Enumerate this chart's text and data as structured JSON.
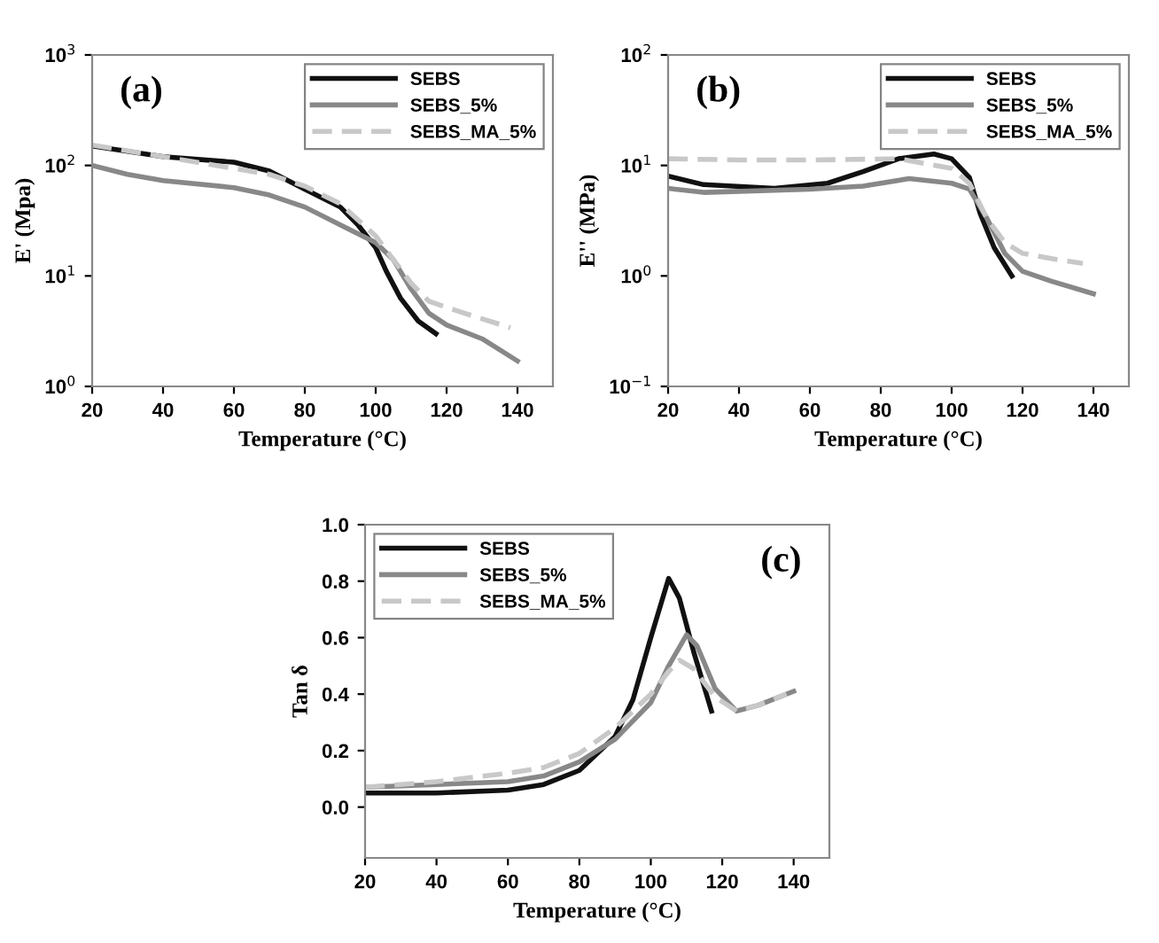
{
  "chart_data": [
    {
      "type": "line",
      "xlabel": "Temperature (°C)",
      "ylabel": "E' (Mpa)",
      "annotations": [
        "(a)"
      ],
      "log": "y",
      "legend": "top right",
      "grid": false,
      "marker": "none",
      "xlim": [
        20,
        150
      ],
      "xticks": [
        20,
        40,
        60,
        80,
        100,
        120,
        140
      ],
      "ylim": [
        1,
        1000
      ],
      "yticks": [
        {
          "value": 1,
          "label": "10$^{0}$"
        },
        {
          "value": 10,
          "label": "10$^{1}$"
        },
        {
          "value": 100,
          "label": "10$^{2}$"
        },
        {
          "value": 1000,
          "label": "10$^{3}$"
        }
      ],
      "series": [
        {
          "name": "SEBS",
          "color": "#111111",
          "line_style": "solid",
          "x": [
            20,
            40,
            60,
            70,
            80,
            90,
            95,
            100,
            103,
            107,
            112,
            117
          ],
          "values": [
            150,
            120,
            107,
            89,
            61,
            42,
            29,
            18,
            11,
            6.3,
            3.9,
            3.0
          ]
        },
        {
          "name": "SEBS_5%",
          "color": "#888888",
          "line_style": "solid",
          "x": [
            20,
            30,
            40,
            60,
            70,
            80,
            90,
            100,
            105,
            110,
            115,
            120,
            130,
            140
          ],
          "values": [
            100,
            83,
            73,
            63,
            54,
            42,
            29,
            20,
            14,
            7.6,
            4.6,
            3.6,
            2.7,
            1.7
          ]
        },
        {
          "name": "SEBS_MA_5%",
          "color": "#c8c8c8",
          "line_style": "dashed",
          "x": [
            20,
            40,
            60,
            70,
            80,
            90,
            100,
            105,
            110,
            115,
            125,
            138
          ],
          "values": [
            153,
            120,
            94,
            83,
            65,
            45,
            23,
            14,
            8.6,
            5.9,
            4.6,
            3.4
          ]
        }
      ]
    },
    {
      "type": "line",
      "xlabel": "Temperature (°C)",
      "ylabel": "E'' (MPa)",
      "annotations": [
        "(b)"
      ],
      "log": "y",
      "legend": "top right",
      "grid": false,
      "marker": "none",
      "xlim": [
        20,
        150
      ],
      "xticks": [
        20,
        40,
        60,
        80,
        100,
        120,
        140
      ],
      "ylim": [
        0.1,
        100
      ],
      "yticks": [
        {
          "value": 0.1,
          "label": "10$^{−1}$"
        },
        {
          "value": 1,
          "label": "10$^{0}$"
        },
        {
          "value": 10,
          "label": "10$^{1}$"
        },
        {
          "value": 100,
          "label": "10$^{2}$"
        }
      ],
      "series": [
        {
          "name": "SEBS",
          "color": "#111111",
          "line_style": "solid",
          "x": [
            20,
            30,
            50,
            65,
            75,
            85,
            95,
            100,
            105,
            108,
            112,
            117
          ],
          "values": [
            8.0,
            6.7,
            6.2,
            6.9,
            8.8,
            11.5,
            12.7,
            11.5,
            7.8,
            3.7,
            1.8,
            1.0
          ]
        },
        {
          "name": "SEBS_5%",
          "color": "#888888",
          "line_style": "solid",
          "x": [
            20,
            30,
            60,
            75,
            88,
            100,
            105,
            110,
            115,
            120,
            128,
            140
          ],
          "values": [
            6.2,
            5.7,
            6.1,
            6.5,
            7.6,
            6.9,
            6.1,
            3.3,
            1.6,
            1.1,
            0.9,
            0.69
          ]
        },
        {
          "name": "SEBS_MA_5%",
          "color": "#c8c8c8",
          "line_style": "dashed",
          "x": [
            20,
            40,
            60,
            85,
            100,
            105,
            110,
            115,
            120,
            130,
            137
          ],
          "values": [
            11.5,
            11.2,
            11.2,
            11.5,
            9.4,
            6.9,
            3.3,
            2.0,
            1.6,
            1.4,
            1.3
          ]
        }
      ]
    },
    {
      "type": "line",
      "xlabel": "Temperature (°C)",
      "ylabel": "Tan δ",
      "annotations": [
        "(c)"
      ],
      "legend": "top left",
      "grid": false,
      "marker": "none",
      "xlim": [
        20,
        150
      ],
      "xticks": [
        20,
        40,
        60,
        80,
        100,
        120,
        140
      ],
      "ylim": [
        -0.18,
        1.0
      ],
      "yticks": [
        {
          "value": 0.0,
          "label": "0.0"
        },
        {
          "value": 0.2,
          "label": "0.2"
        },
        {
          "value": 0.4,
          "label": "0.4"
        },
        {
          "value": 0.6,
          "label": "0.6"
        },
        {
          "value": 0.8,
          "label": "0.8"
        },
        {
          "value": 1.0,
          "label": "1.0"
        }
      ],
      "series": [
        {
          "name": "SEBS",
          "color": "#111111",
          "line_style": "solid",
          "x": [
            20,
            40,
            60,
            70,
            80,
            90,
            95,
            100,
            105,
            108,
            112,
            117
          ],
          "values": [
            0.05,
            0.05,
            0.06,
            0.08,
            0.13,
            0.25,
            0.38,
            0.6,
            0.81,
            0.74,
            0.55,
            0.34
          ]
        },
        {
          "name": "SEBS_5%",
          "color": "#888888",
          "line_style": "solid",
          "x": [
            20,
            40,
            60,
            70,
            80,
            90,
            100,
            105,
            110,
            113,
            118,
            124,
            130,
            140
          ],
          "values": [
            0.07,
            0.08,
            0.09,
            0.11,
            0.16,
            0.24,
            0.37,
            0.5,
            0.61,
            0.57,
            0.42,
            0.34,
            0.36,
            0.41
          ]
        },
        {
          "name": "SEBS_MA_5%",
          "color": "#c8c8c8",
          "line_style": "dashed",
          "x": [
            20,
            40,
            60,
            70,
            80,
            90,
            100,
            105,
            108,
            112,
            118,
            124,
            130,
            138
          ],
          "values": [
            0.07,
            0.09,
            0.12,
            0.14,
            0.19,
            0.28,
            0.4,
            0.48,
            0.52,
            0.49,
            0.39,
            0.34,
            0.36,
            0.4
          ]
        }
      ]
    }
  ]
}
